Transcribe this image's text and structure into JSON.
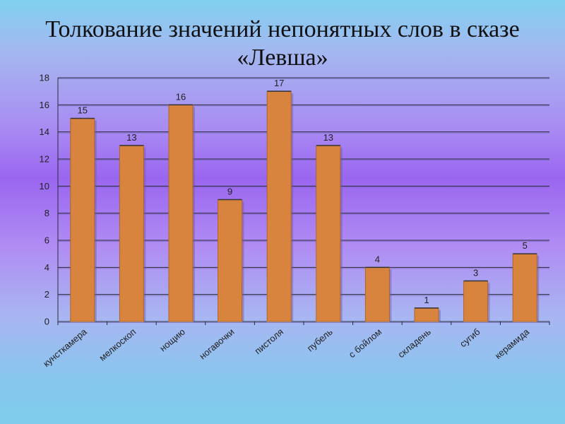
{
  "chart_data": {
    "type": "bar",
    "title_line1": "Толкование значений непонятных слов в сказе",
    "title_line2": "«Левша»",
    "categories": [
      "кунсткамера",
      "мелкоскоп",
      "нощию",
      "ногавочки",
      "пистоля",
      "пубель",
      "с бойлом",
      "складень",
      "сугиб",
      "керамида"
    ],
    "values": [
      15,
      13,
      16,
      9,
      17,
      13,
      4,
      1,
      3,
      5
    ],
    "ylim": [
      0,
      18
    ],
    "yticks": [
      0,
      2,
      4,
      6,
      8,
      10,
      12,
      14,
      16,
      18
    ],
    "grid": true,
    "bar_color": "#d9843e",
    "legend": "none"
  }
}
